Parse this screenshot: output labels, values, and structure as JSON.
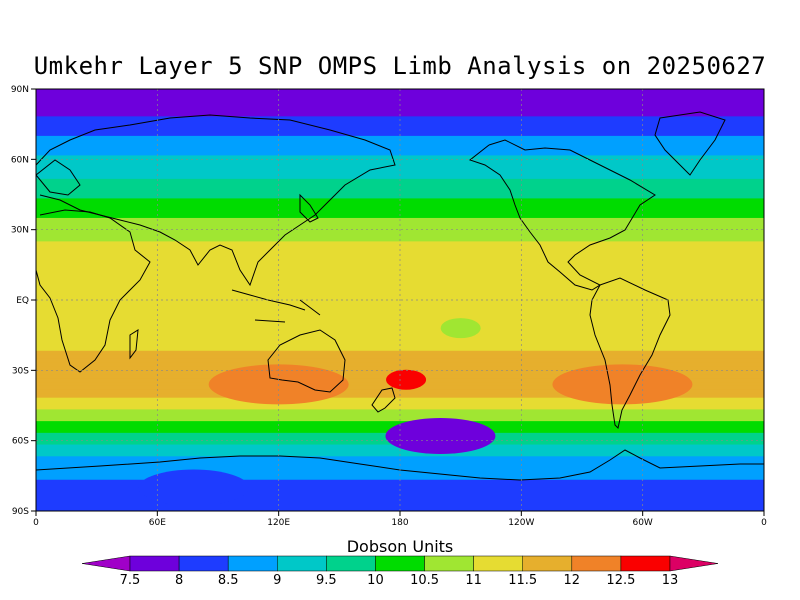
{
  "chart_data": {
    "type": "heatmap",
    "title": "Umkehr Layer 5 SNP OMPS Limb Analysis on 20250627",
    "x_ticks": [
      "0",
      "60E",
      "120E",
      "180",
      "120W",
      "60W",
      "0"
    ],
    "y_ticks": [
      "90N",
      "60N",
      "30N",
      "EQ",
      "30S",
      "60S",
      "90S"
    ],
    "xlim": [
      0,
      360
    ],
    "ylim": [
      -90,
      90
    ],
    "grid": true,
    "colorbar": {
      "label": "Dobson Units",
      "levels": [
        7.5,
        8,
        8.5,
        9,
        9.5,
        10,
        10.5,
        11,
        11.5,
        12,
        12.5,
        13
      ],
      "level_labels": [
        "7.5",
        "8",
        "8.5",
        "9",
        "9.5",
        "10",
        "10.5",
        "11",
        "11.5",
        "12",
        "12.5",
        "13"
      ],
      "colors": [
        "#a000c8",
        "#6e00dc",
        "#1e3cff",
        "#00a0ff",
        "#00c8c8",
        "#00d28c",
        "#00dc00",
        "#a0e632",
        "#e6dc32",
        "#e6af2d",
        "#f08228",
        "#fa0000",
        "#dc0064"
      ]
    },
    "zonal_profile": [
      {
        "lat": 90,
        "value": 7.8
      },
      {
        "lat": 80,
        "value": 7.9
      },
      {
        "lat": 70,
        "value": 8.5
      },
      {
        "lat": 60,
        "value": 9.1
      },
      {
        "lat": 50,
        "value": 9.6
      },
      {
        "lat": 40,
        "value": 10.2
      },
      {
        "lat": 30,
        "value": 10.8
      },
      {
        "lat": 20,
        "value": 11.2
      },
      {
        "lat": 10,
        "value": 11.1
      },
      {
        "lat": 0,
        "value": 11.0
      },
      {
        "lat": -10,
        "value": 11.0
      },
      {
        "lat": -20,
        "value": 11.4
      },
      {
        "lat": -30,
        "value": 11.8
      },
      {
        "lat": -40,
        "value": 11.7
      },
      {
        "lat": -50,
        "value": 10.7
      },
      {
        "lat": -60,
        "value": 9.6
      },
      {
        "lat": -70,
        "value": 8.7
      },
      {
        "lat": -80,
        "value": 8.4
      },
      {
        "lat": -90,
        "value": 8.3
      }
    ],
    "features": [
      {
        "lon": 183,
        "lat": -34,
        "value": 12.6
      },
      {
        "lon": 302,
        "lat": -38,
        "value": 12.6
      },
      {
        "lon": 200,
        "lat": -58,
        "value": 7.8
      },
      {
        "lon": 120,
        "lat": -36,
        "value": 12.2
      },
      {
        "lon": 290,
        "lat": -36,
        "value": 12.1
      },
      {
        "lon": 210,
        "lat": -12,
        "value": 10.6
      },
      {
        "lon": 78,
        "lat": -80,
        "value": 8.2
      }
    ]
  }
}
